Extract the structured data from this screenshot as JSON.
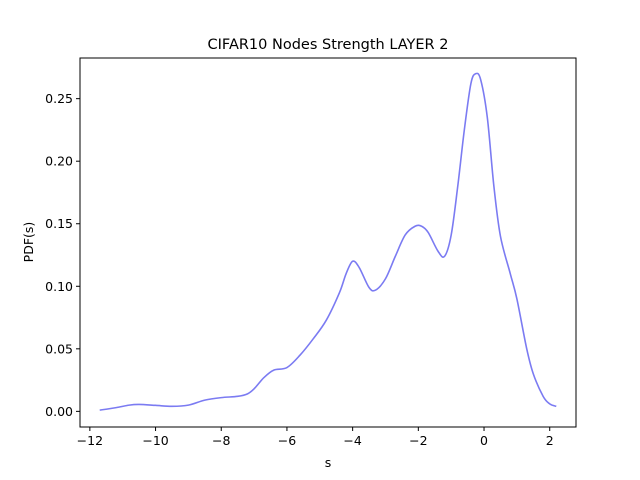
{
  "chart_data": {
    "type": "line",
    "title": "CIFAR10 Nodes Strength LAYER 2",
    "xlabel": "s",
    "ylabel": "PDF(s)",
    "xlim": [
      -12.3,
      2.8
    ],
    "ylim": [
      -0.0125,
      0.2825
    ],
    "x_ticks": [
      -12,
      -10,
      -8,
      -6,
      -4,
      -2,
      0,
      2
    ],
    "x_tick_labels": [
      "−12",
      "−10",
      "−8",
      "−6",
      "−4",
      "−2",
      "0",
      "2"
    ],
    "y_ticks": [
      0.0,
      0.05,
      0.1,
      0.15,
      0.2,
      0.25
    ],
    "y_tick_labels": [
      "0.00",
      "0.05",
      "0.10",
      "0.15",
      "0.20",
      "0.25"
    ],
    "grid": false,
    "legend": false,
    "series": [
      {
        "color": "#7b7bf2",
        "x": [
          -11.7,
          -11.2,
          -10.8,
          -10.5,
          -10.0,
          -9.5,
          -9.0,
          -8.5,
          -8.0,
          -7.5,
          -7.2,
          -7.0,
          -6.7,
          -6.4,
          -6.0,
          -5.6,
          -5.2,
          -4.8,
          -4.4,
          -4.2,
          -4.0,
          -3.8,
          -3.5,
          -3.3,
          -3.0,
          -2.7,
          -2.4,
          -2.1,
          -1.9,
          -1.7,
          -1.4,
          -1.2,
          -1.0,
          -0.8,
          -0.6,
          -0.4,
          -0.25,
          -0.1,
          0.1,
          0.3,
          0.5,
          0.8,
          1.0,
          1.3,
          1.5,
          1.8,
          2.0,
          2.2
        ],
        "y": [
          0.001,
          0.003,
          0.005,
          0.0055,
          0.0048,
          0.004,
          0.005,
          0.009,
          0.011,
          0.012,
          0.014,
          0.018,
          0.027,
          0.033,
          0.035,
          0.045,
          0.058,
          0.073,
          0.095,
          0.11,
          0.12,
          0.115,
          0.099,
          0.097,
          0.106,
          0.124,
          0.141,
          0.148,
          0.148,
          0.143,
          0.128,
          0.124,
          0.141,
          0.18,
          0.225,
          0.262,
          0.27,
          0.265,
          0.235,
          0.18,
          0.14,
          0.11,
          0.09,
          0.05,
          0.03,
          0.012,
          0.006,
          0.004
        ]
      }
    ]
  }
}
